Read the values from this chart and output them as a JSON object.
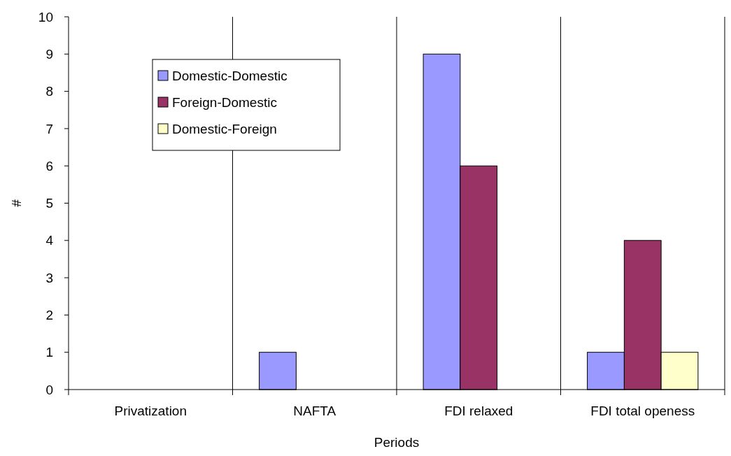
{
  "chart_data": {
    "type": "bar",
    "xlabel": "Periods",
    "ylabel": "#",
    "categories": [
      "Privatization",
      "NAFTA",
      "FDI relaxed",
      "FDI total openess"
    ],
    "series": [
      {
        "name": "Domestic-Domestic",
        "color": "#9999ff",
        "values": [
          0,
          1,
          9,
          1
        ]
      },
      {
        "name": "Foreign-Domestic",
        "color": "#993366",
        "values": [
          0,
          0,
          6,
          4
        ]
      },
      {
        "name": "Domestic-Foreign",
        "color": "#ffffcc",
        "values": [
          0,
          0,
          0,
          1
        ]
      }
    ],
    "ylim": [
      0,
      10
    ],
    "yticks": [
      0,
      1,
      2,
      3,
      4,
      5,
      6,
      7,
      8,
      9,
      10
    ],
    "grid": "x",
    "legend": "top left"
  }
}
